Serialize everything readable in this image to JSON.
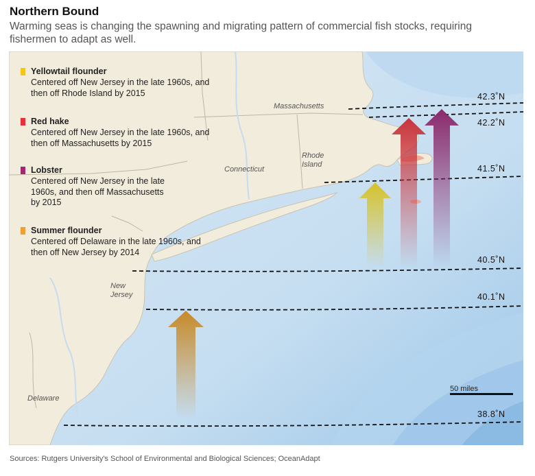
{
  "title": "Northern Bound",
  "subtitle": "Warming seas is changing the spawning and migrating pattern of commercial fish stocks, requiring fishermen to adapt as well.",
  "legend": [
    {
      "name": "Yellowtail flounder",
      "description": "Centered off New Jersey in the late 1960s, and then off Rhode Island by 2015",
      "color": "#f5c518"
    },
    {
      "name": "Red hake",
      "description": "Centered off New Jersey in the late 1960s, and then off Massachusetts by 2015",
      "color": "#e8303a"
    },
    {
      "name": "Lobster",
      "description": "Centered off New Jersey in the late 1960s, and then off Massachusetts by 2015",
      "color": "#a3286e"
    },
    {
      "name": "Summer flounder",
      "description": "Centered off Delaware in the late 1960s, and then off New Jersey by 2014",
      "color": "#f0a030"
    }
  ],
  "places": {
    "massachusetts": "Massachusetts",
    "connecticut": "Connecticut",
    "rhode_island": "Rhode Island",
    "new_jersey": "New Jersey",
    "delaware": "Delaware"
  },
  "latitudes": [
    "42.3˚N",
    "42.2˚N",
    "41.5˚N",
    "40.5˚N",
    "40.1˚N",
    "38.8˚N"
  ],
  "scale_label": "50 miles",
  "source": "Sources: Rutgers University's School of Environmental and Biological Sciences; OceanAdapt",
  "colors": {
    "land": "#f2ecdc",
    "ocean_shallow": "#cfe3f3",
    "ocean_deep": "#7fb2de",
    "summer_flounder_arrow": "#c78a2a",
    "yellowtail_arrow": "#d6c22a",
    "red_hake_arrow": "#c8343c",
    "lobster_arrow": "#8a2a6c"
  }
}
